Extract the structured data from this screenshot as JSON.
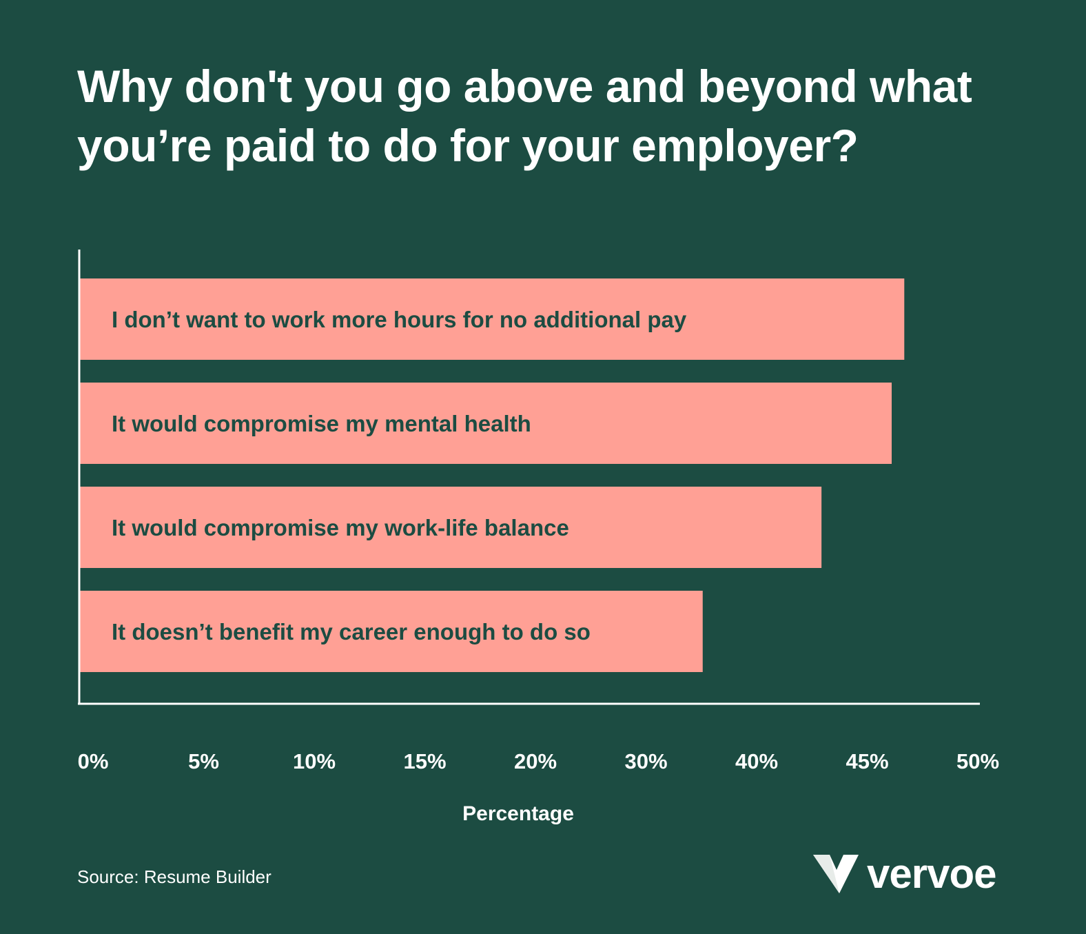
{
  "colors": {
    "background": "#1c4c42",
    "bar": "#ffa095",
    "bar_text": "#1c4c42",
    "text": "#ffffff"
  },
  "chart_data": {
    "type": "bar",
    "orientation": "horizontal",
    "title": "Why don't you go above and beyond what you’re paid to do for your employer?",
    "categories": [
      "I don’t want to work more hours for no additional pay",
      "It would compromise my mental health",
      "It would compromise my work-life balance",
      "It doesn’t benefit my career enough to do so"
    ],
    "values": [
      45.8,
      45.1,
      41.2,
      34.6
    ],
    "xlabel": "Percentage",
    "ylabel": "",
    "xlim": [
      0,
      50
    ],
    "x_tick_labels": [
      "0%",
      "5%",
      "10%",
      "15%",
      "20%",
      "30%",
      "40%",
      "45%",
      "50%"
    ],
    "x_tick_values": [
      0,
      5,
      10,
      15,
      20,
      30,
      40,
      45,
      50
    ],
    "grid": false,
    "legend": "none"
  },
  "footer": {
    "source": "Source: Resume Builder",
    "logo_text": "vervoe"
  }
}
